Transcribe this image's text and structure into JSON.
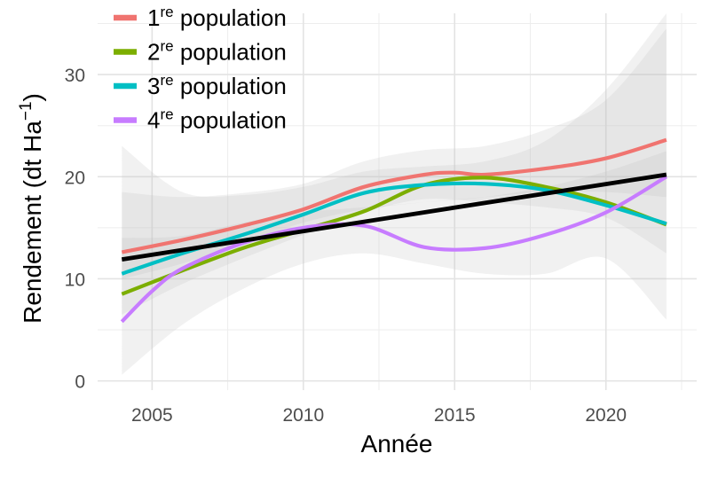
{
  "chart_data": {
    "type": "line",
    "xlabel": "Année",
    "ylabel": {
      "base": "Rendement (dt Ha",
      "sup": "−1",
      "tail": ")"
    },
    "xlim": [
      2003.2,
      2023.0
    ],
    "ylim": [
      -0.9,
      36.0
    ],
    "x_ticks": [
      2005,
      2010,
      2015,
      2020
    ],
    "y_ticks": [
      0,
      10,
      20,
      30
    ],
    "legend_position": "top-left",
    "series": [
      {
        "name": "1re population",
        "label_base": "1",
        "label_sup": "re",
        "label_tail": " population",
        "color": "#F07470",
        "x": [
          2004,
          2006,
          2008,
          2010,
          2012,
          2014,
          2015,
          2016,
          2018,
          2020,
          2022
        ],
        "y": [
          12.6,
          13.8,
          15.2,
          16.8,
          19.0,
          20.2,
          20.4,
          20.2,
          20.8,
          21.8,
          23.6
        ]
      },
      {
        "name": "2re population",
        "label_base": "2",
        "label_sup": "re",
        "label_tail": " population",
        "color": "#7CAE00",
        "x": [
          2004,
          2006,
          2008,
          2010,
          2012,
          2014,
          2016,
          2018,
          2020,
          2022
        ],
        "y": [
          8.5,
          10.8,
          13.0,
          14.8,
          16.6,
          19.2,
          19.9,
          19.0,
          17.5,
          15.3
        ]
      },
      {
        "name": "3re population",
        "label_base": "3",
        "label_sup": "re",
        "label_tail": " population",
        "color": "#00BFC4",
        "x": [
          2004,
          2006,
          2008,
          2010,
          2012,
          2014,
          2016,
          2018,
          2020,
          2022
        ],
        "y": [
          10.5,
          12.5,
          14.3,
          16.3,
          18.4,
          19.2,
          19.3,
          18.7,
          17.2,
          15.4
        ]
      },
      {
        "name": "4re population",
        "label_base": "4",
        "label_sup": "re",
        "label_tail": " population",
        "color": "#C77CFF",
        "x": [
          2004,
          2005,
          2006,
          2008,
          2010,
          2012,
          2014,
          2016,
          2018,
          2020,
          2022
        ],
        "y": [
          5.8,
          8.8,
          11.0,
          13.5,
          15.0,
          15.2,
          13.1,
          13.0,
          14.3,
          16.5,
          20.0
        ]
      },
      {
        "name": "",
        "label_base": "",
        "label_sup": "",
        "label_tail": "",
        "color": "#000000",
        "x": [
          2004,
          2022
        ],
        "y": [
          11.9,
          20.2
        ]
      }
    ],
    "confidence_bands": [
      {
        "x": [
          2004,
          2006,
          2008,
          2010,
          2012,
          2014,
          2016,
          2018,
          2020,
          2022
        ],
        "lower": [
          6.5,
          9.5,
          12.0,
          14.3,
          16.5,
          17.8,
          17.5,
          17.0,
          16.0,
          12.5
        ],
        "upper": [
          18.5,
          18.0,
          18.4,
          19.3,
          21.5,
          22.6,
          23.0,
          24.6,
          27.5,
          34.5
        ]
      },
      {
        "x": [
          2004,
          2006,
          2008,
          2010,
          2012,
          2014,
          2016,
          2018,
          2020,
          2022
        ],
        "lower": [
          0.6,
          5.5,
          9.0,
          11.5,
          12.5,
          11.5,
          10.5,
          10.5,
          12.0,
          6.0
        ],
        "upper": [
          23.0,
          18.5,
          18.2,
          19.0,
          20.5,
          21.0,
          21.5,
          23.5,
          28.5,
          36.0
        ]
      },
      {
        "x": [
          2004,
          2006,
          2008,
          2010,
          2012,
          2014,
          2016,
          2018,
          2020,
          2022
        ],
        "lower": [
          10.0,
          11.5,
          13.5,
          15.5,
          16.8,
          17.5,
          18.0,
          18.5,
          18.5,
          18.0
        ],
        "upper": [
          14.0,
          14.2,
          15.5,
          16.5,
          17.0,
          17.5,
          18.0,
          19.0,
          20.5,
          22.5
        ]
      }
    ]
  }
}
